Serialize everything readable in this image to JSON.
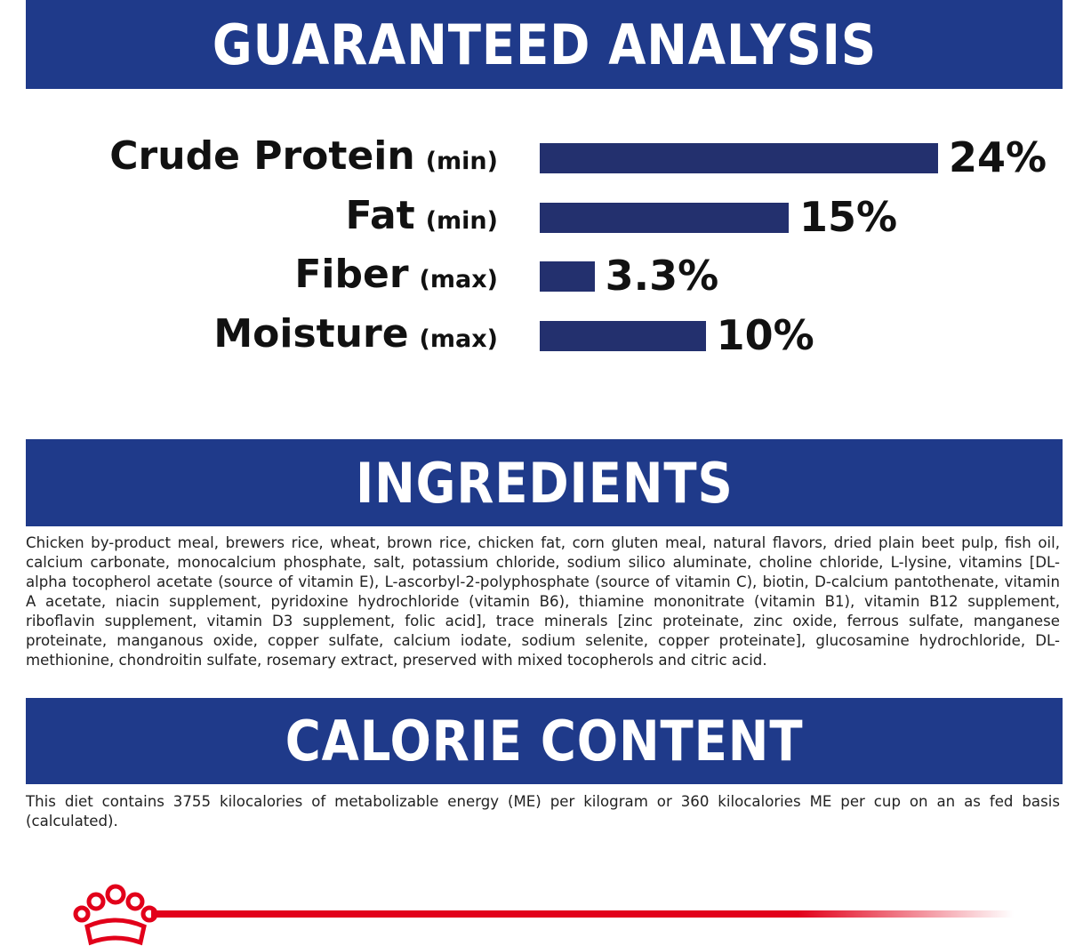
{
  "chart_data": {
    "type": "bar",
    "title": "GUARANTEED ANALYSIS",
    "categories": [
      "Crude Protein",
      "Fat",
      "Fiber",
      "Moisture"
    ],
    "qualifiers": [
      "(min)",
      "(min)",
      "(max)",
      "(max)"
    ],
    "values": [
      24,
      15,
      3.3,
      10
    ],
    "value_labels": [
      "24%",
      "15%",
      "3.3%",
      "10%"
    ],
    "color": "#23306e"
  },
  "ingredients": {
    "title": "INGREDIENTS",
    "text": "Chicken by-product meal, brewers rice, wheat, brown rice, chicken fat, corn gluten meal, natural flavors, dried plain beet pulp, fish oil, calcium carbonate, monocalcium phosphate, salt, potassium chloride, sodium silico aluminate, choline chloride, L-lysine, vitamins [DL-alpha tocopherol acetate (source of vitamin E), L-ascorbyl-2-polyphosphate (source of vitamin C), biotin, D-calcium pantothenate, vitamin A acetate, niacin supplement, pyridoxine hydrochloride (vitamin B6), thiamine mononitrate (vitamin B1), vitamin B12 supplement, riboflavin supplement, vitamin D3 supplement, folic acid], trace minerals [zinc proteinate, zinc oxide, ferrous sulfate, manganese proteinate, manganous oxide, copper sulfate, calcium iodate, sodium selenite, copper proteinate], glucosamine hydrochloride, DL-methionine, chondroitin sulfate, rosemary extract, preserved with mixed tocopherols and citric acid."
  },
  "calorie_content": {
    "title": "CALORIE CONTENT",
    "text": "This diet contains 3755 kilocalories of metabolizable energy (ME) per kilogram or 360 kilocalories ME per cup on an as fed basis (calculated)."
  }
}
